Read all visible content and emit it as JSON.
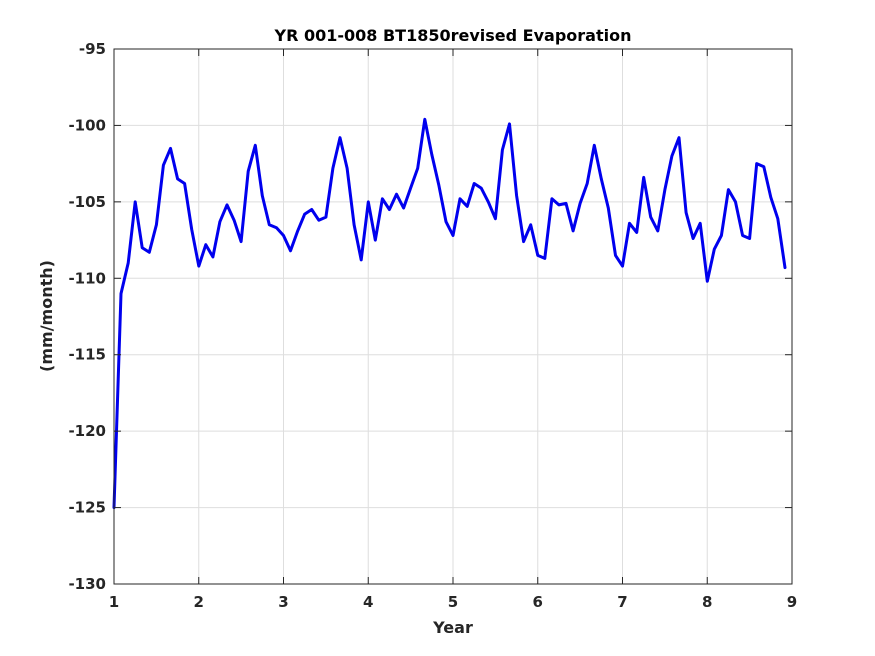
{
  "chart_data": {
    "type": "line",
    "title": "YR 001-008 BT1850revised Evaporation",
    "xlabel": "Year",
    "ylabel": "(mm/month)",
    "xlim": [
      1,
      9
    ],
    "ylim": [
      -130,
      -95
    ],
    "xticks": [
      1,
      2,
      3,
      4,
      5,
      6,
      7,
      8,
      9
    ],
    "yticks": [
      -130,
      -125,
      -120,
      -115,
      -110,
      -105,
      -100,
      -95
    ],
    "grid": true,
    "legend": "none",
    "series": [
      {
        "color": "#0000ee",
        "x": [
          1.0,
          1.083,
          1.167,
          1.25,
          1.333,
          1.417,
          1.5,
          1.583,
          1.667,
          1.75,
          1.833,
          1.917,
          2.0,
          2.083,
          2.167,
          2.25,
          2.333,
          2.417,
          2.5,
          2.583,
          2.667,
          2.75,
          2.833,
          2.917,
          3.0,
          3.083,
          3.167,
          3.25,
          3.333,
          3.417,
          3.5,
          3.583,
          3.667,
          3.75,
          3.833,
          3.917,
          4.0,
          4.083,
          4.167,
          4.25,
          4.333,
          4.417,
          4.5,
          4.583,
          4.667,
          4.75,
          4.833,
          4.917,
          5.0,
          5.083,
          5.167,
          5.25,
          5.333,
          5.417,
          5.5,
          5.583,
          5.667,
          5.75,
          5.833,
          5.917,
          6.0,
          6.083,
          6.167,
          6.25,
          6.333,
          6.417,
          6.5,
          6.583,
          6.667,
          6.75,
          6.833,
          6.917,
          7.0,
          7.083,
          7.167,
          7.25,
          7.333,
          7.417,
          7.5,
          7.583,
          7.667,
          7.75,
          7.833,
          7.917,
          8.0,
          8.083,
          8.167,
          8.25,
          8.333,
          8.417,
          8.5,
          8.583,
          8.667,
          8.75,
          8.833,
          8.917
        ],
        "y": [
          -125.0,
          -111.0,
          -109.0,
          -105.0,
          -108.0,
          -108.3,
          -106.5,
          -102.6,
          -101.5,
          -103.5,
          -103.8,
          -106.8,
          -109.2,
          -107.8,
          -108.6,
          -106.3,
          -105.2,
          -106.2,
          -107.6,
          -103.0,
          -101.3,
          -104.6,
          -106.5,
          -106.7,
          -107.2,
          -108.2,
          -106.9,
          -105.8,
          -105.5,
          -106.2,
          -106.0,
          -102.8,
          -100.8,
          -102.8,
          -106.5,
          -108.8,
          -105.0,
          -107.5,
          -104.8,
          -105.5,
          -104.5,
          -105.4,
          -104.1,
          -102.8,
          -99.6,
          -101.9,
          -103.9,
          -106.3,
          -107.2,
          -104.8,
          -105.3,
          -103.8,
          -104.1,
          -105.0,
          -106.1,
          -101.6,
          -99.9,
          -104.6,
          -107.6,
          -106.5,
          -108.5,
          -108.7,
          -104.8,
          -105.2,
          -105.1,
          -106.9,
          -105.1,
          -103.8,
          -101.3,
          -103.5,
          -105.4,
          -108.5,
          -109.2,
          -106.4,
          -107.0,
          -103.4,
          -106.0,
          -106.9,
          -104.2,
          -102.0,
          -100.8,
          -105.7,
          -107.4,
          -106.4,
          -110.2,
          -108.1,
          -107.2,
          -104.2,
          -105.0,
          -107.2,
          -107.4,
          -102.5,
          -102.7,
          -104.7,
          -106.1,
          -109.3
        ]
      }
    ]
  }
}
